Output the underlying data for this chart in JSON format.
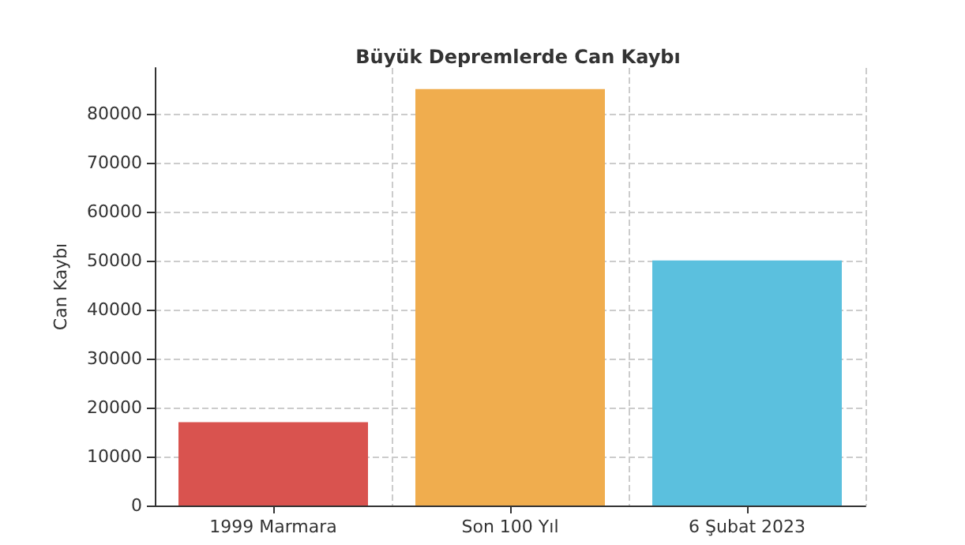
{
  "chart_data": {
    "type": "bar",
    "title": "Büyük Depremlerde Can Kaybı",
    "ylabel": "Can Kaybı",
    "categories": [
      "1999 Marmara",
      "Son 100 Yıl",
      "6 Şubat 2023"
    ],
    "values": [
      17000,
      85000,
      50000
    ],
    "colors": [
      "#d9534f",
      "#f0ad4e",
      "#5bc0de"
    ],
    "ylim": [
      0,
      89300
    ],
    "yticks": [
      0,
      10000,
      20000,
      30000,
      40000,
      50000,
      60000,
      70000,
      80000
    ],
    "grid": true
  }
}
